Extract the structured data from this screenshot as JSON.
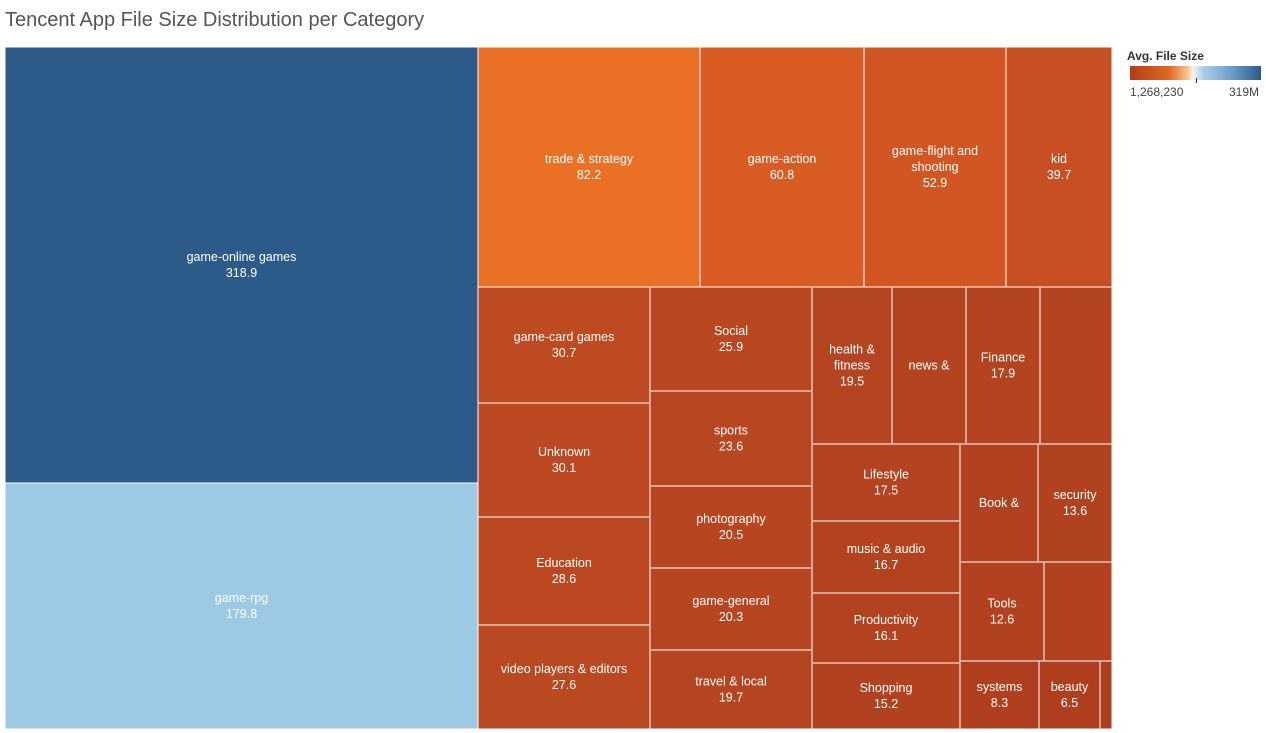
{
  "title": "Tencent App File Size Distribution per Category",
  "legend": {
    "title": "Avg. File Size",
    "min_label": "1,268,230",
    "max_label": "319M",
    "colors": {
      "low": "#b23d17",
      "mid_low": "#e06a22",
      "mid": "#f5f5f0",
      "mid_high": "#a9cfe6",
      "high": "#2c5b8a"
    }
  },
  "chart_data": {
    "type": "treemap",
    "title": "Tencent App File Size Distribution per Category",
    "size_measure": "Avg. File Size",
    "color_measure": "Avg. File Size",
    "items": [
      {
        "name": "game-online games",
        "value": 318.9,
        "label": "game-online games",
        "value_label": "318.9",
        "color": "#2d5b89"
      },
      {
        "name": "game-rpg",
        "value": 179.8,
        "label": "game-rpg",
        "value_label": "179.8",
        "color": "#9cc9e4"
      },
      {
        "name": "trade & strategy",
        "value": 82.2,
        "label": "trade & strategy",
        "value_label": "82.2",
        "color": "#ea7026"
      },
      {
        "name": "game-action",
        "value": 60.8,
        "label": "game-action",
        "value_label": "60.8",
        "color": "#d95c25"
      },
      {
        "name": "game-flight and shooting",
        "value": 52.9,
        "label": "game-flight and\nshooting",
        "value_label": "52.9",
        "color": "#d25623"
      },
      {
        "name": "kid",
        "value": 39.7,
        "label": "kid",
        "value_label": "39.7",
        "color": "#c74f22"
      },
      {
        "name": "game-card games",
        "value": 30.7,
        "label": "game-card games",
        "value_label": "30.7",
        "color": "#bd4a21"
      },
      {
        "name": "Unknown",
        "value": 30.1,
        "label": "Unknown",
        "value_label": "30.1",
        "color": "#bc4921"
      },
      {
        "name": "Education",
        "value": 28.6,
        "label": "Education",
        "value_label": "28.6",
        "color": "#bb4821"
      },
      {
        "name": "video players & editors",
        "value": 27.6,
        "label": "video players & editors",
        "value_label": "27.6",
        "color": "#ba4821"
      },
      {
        "name": "Social",
        "value": 25.9,
        "label": "Social",
        "value_label": "25.9",
        "color": "#b94720"
      },
      {
        "name": "sports",
        "value": 23.6,
        "label": "sports",
        "value_label": "23.6",
        "color": "#b84620"
      },
      {
        "name": "photography",
        "value": 20.5,
        "label": "photography",
        "value_label": "20.5",
        "color": "#b64520"
      },
      {
        "name": "game-general",
        "value": 20.3,
        "label": "game-general",
        "value_label": "20.3",
        "color": "#b64520"
      },
      {
        "name": "travel & local",
        "value": 19.7,
        "label": "travel & local",
        "value_label": "19.7",
        "color": "#b54420"
      },
      {
        "name": "health & fitness",
        "value": 19.5,
        "label": "health &\nfitness",
        "value_label": "19.5",
        "color": "#b54420"
      },
      {
        "name": "news &",
        "value": 18.5,
        "label": "news &",
        "value_label": "",
        "color": "#b44420"
      },
      {
        "name": "Finance",
        "value": 17.9,
        "label": "Finance",
        "value_label": "17.9",
        "color": "#b44320"
      },
      {
        "name": "(unlabeled)",
        "value": 17.6,
        "label": "",
        "value_label": "",
        "color": "#b44320"
      },
      {
        "name": "Lifestyle",
        "value": 17.5,
        "label": "Lifestyle",
        "value_label": "17.5",
        "color": "#b44320"
      },
      {
        "name": "music & audio",
        "value": 16.7,
        "label": "music & audio",
        "value_label": "16.7",
        "color": "#b3431f"
      },
      {
        "name": "Productivity",
        "value": 16.1,
        "label": "Productivity",
        "value_label": "16.1",
        "color": "#b3431f"
      },
      {
        "name": "Shopping",
        "value": 15.2,
        "label": "Shopping",
        "value_label": "15.2",
        "color": "#b2421f"
      },
      {
        "name": "Book &",
        "value": 14.5,
        "label": "Book &",
        "value_label": "",
        "color": "#b2421f"
      },
      {
        "name": "security",
        "value": 13.6,
        "label": "security",
        "value_label": "13.6",
        "color": "#b1421f"
      },
      {
        "name": "Tools",
        "value": 12.6,
        "label": "Tools",
        "value_label": "12.6",
        "color": "#b1411f"
      },
      {
        "name": "(unlabeled)",
        "value": 12.0,
        "label": "",
        "value_label": "",
        "color": "#b1411f"
      },
      {
        "name": "systems",
        "value": 8.3,
        "label": "systems",
        "value_label": "8.3",
        "color": "#af3f1f"
      },
      {
        "name": "beauty",
        "value": 6.5,
        "label": "beauty",
        "value_label": "6.5",
        "color": "#ae3e1e"
      },
      {
        "name": "(unlabeled)",
        "value": 1.3,
        "label": "",
        "value_label": "",
        "color": "#ad3e1e"
      }
    ]
  }
}
